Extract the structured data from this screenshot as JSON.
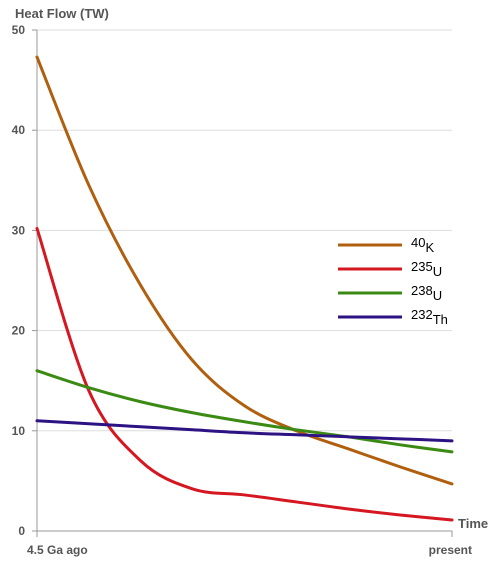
{
  "chart_data": {
    "type": "line",
    "ylabel": "Heat Flow (TW)",
    "xlabel": "Time",
    "x_tick_labels": [
      "4.5 Ga ago",
      "present"
    ],
    "x_range": [
      0,
      1
    ],
    "ylim": [
      0,
      50
    ],
    "y_ticks": [
      0,
      10,
      20,
      30,
      40,
      50
    ],
    "y_tick_labels": [
      "0",
      "10",
      "20",
      "30",
      "40",
      "50"
    ],
    "grid": "horizontal",
    "legend_position": "right",
    "x": [
      0,
      0.125,
      0.25,
      0.375,
      0.5,
      0.625,
      0.75,
      0.875,
      1
    ],
    "series": [
      {
        "name_sup": "40",
        "name_sub": "K",
        "color": "#b05f0f",
        "values": [
          47.3,
          34.5,
          24.5,
          17.0,
          12.5,
          10.0,
          8.2,
          6.4,
          4.7
        ]
      },
      {
        "name_sup": "235",
        "name_sub": "U",
        "color": "#d51721",
        "values": [
          30.2,
          14.0,
          7.0,
          4.2,
          3.6,
          2.9,
          2.2,
          1.6,
          1.1
        ]
      },
      {
        "name_sup": "238",
        "name_sub": "U",
        "color": "#3b8a14",
        "values": [
          16.0,
          14.3,
          12.9,
          11.8,
          10.9,
          10.1,
          9.4,
          8.6,
          7.9
        ]
      },
      {
        "name_sup": "232",
        "name_sub": "Th",
        "color": "#2d1284",
        "values": [
          11.0,
          10.7,
          10.4,
          10.1,
          9.8,
          9.6,
          9.4,
          9.2,
          9.0
        ]
      }
    ]
  }
}
